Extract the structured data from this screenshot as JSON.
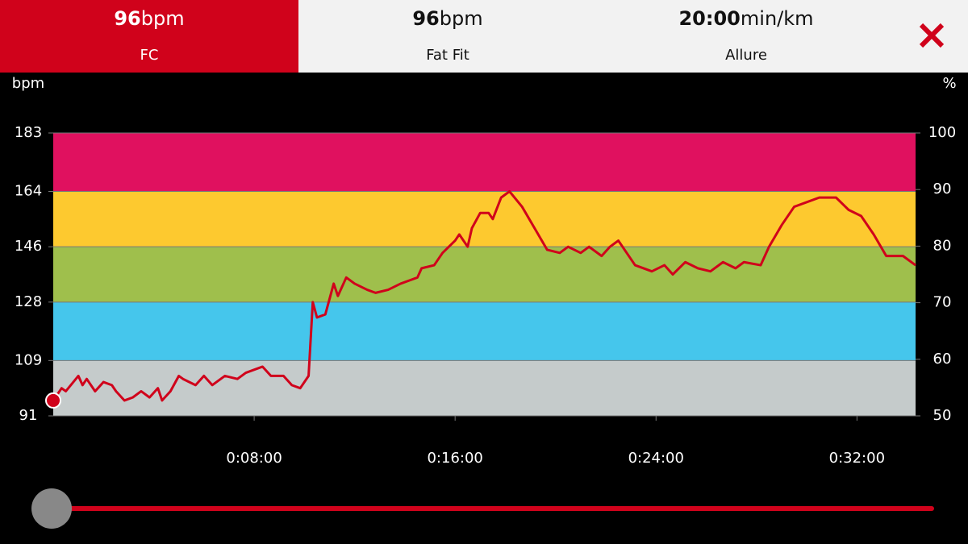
{
  "header": {
    "tabs": [
      {
        "value": "96",
        "unit": "bpm",
        "label": "FC",
        "active": true
      },
      {
        "value": "96",
        "unit": "bpm",
        "label": "Fat Fit",
        "active": false
      },
      {
        "value": "20:00",
        "unit": "min/km",
        "label": "Allure",
        "active": false
      }
    ]
  },
  "chart_data": {
    "type": "line",
    "y_label": "bpm",
    "y2_label": "%",
    "x": [
      0,
      20,
      30,
      60,
      70,
      80,
      100,
      120,
      140,
      150,
      170,
      190,
      210,
      230,
      250,
      260,
      280,
      300,
      310,
      340,
      360,
      380,
      410,
      440,
      460,
      500,
      520,
      550,
      570,
      590,
      610,
      620,
      630,
      650,
      670,
      680,
      700,
      720,
      750,
      770,
      800,
      830,
      870,
      880,
      910,
      930,
      960,
      970,
      990,
      1000,
      1020,
      1040,
      1050,
      1070,
      1090,
      1120,
      1150,
      1180,
      1210,
      1230,
      1260,
      1280,
      1310,
      1330,
      1350,
      1370,
      1390,
      1430,
      1460,
      1480,
      1510,
      1540,
      1570,
      1600,
      1630,
      1650,
      1690,
      1710,
      1740,
      1770,
      1810,
      1830,
      1870,
      1900,
      1930,
      1960,
      1990,
      2030,
      2060
    ],
    "series": [
      {
        "color": "#d0021b",
        "values": [
          96,
          100,
          99,
          104,
          101,
          103,
          99,
          102,
          101,
          99,
          96,
          97,
          99,
          97,
          100,
          96,
          99,
          104,
          103,
          101,
          104,
          101,
          104,
          103,
          105,
          107,
          104,
          104,
          101,
          100,
          104,
          128,
          123,
          124,
          134,
          130,
          136,
          134,
          132,
          131,
          132,
          134,
          136,
          139,
          140,
          144,
          148,
          150,
          146,
          152,
          157,
          157,
          155,
          162,
          164,
          159,
          152,
          145,
          144,
          146,
          144,
          146,
          143,
          146,
          148,
          144,
          140,
          138,
          140,
          137,
          141,
          139,
          138,
          141,
          139,
          141,
          140,
          146,
          153,
          159,
          161,
          162,
          162,
          158,
          156,
          150,
          143,
          143,
          140
        ]
      }
    ],
    "xlim": [
      0,
      2060
    ],
    "xticks": [
      {
        "value": 480,
        "label": "0:08:00"
      },
      {
        "value": 960,
        "label": "0:16:00"
      },
      {
        "value": 1440,
        "label": "0:24:00"
      },
      {
        "value": 1920,
        "label": "0:32:00"
      }
    ],
    "ylim": [
      91,
      183
    ],
    "yticks": [
      91,
      109,
      128,
      146,
      164,
      183
    ],
    "y2lim": [
      50,
      100
    ],
    "y2ticks": [
      50,
      60,
      70,
      80,
      90,
      100
    ],
    "zones": [
      {
        "from": 91,
        "to": 109,
        "color": "#c5cbcb"
      },
      {
        "from": 109,
        "to": 128,
        "color": "#45c6ec"
      },
      {
        "from": 128,
        "to": 146,
        "color": "#9fbf4c"
      },
      {
        "from": 146,
        "to": 164,
        "color": "#fdc92f"
      },
      {
        "from": 164,
        "to": 183,
        "color": "#e0115f"
      }
    ]
  }
}
